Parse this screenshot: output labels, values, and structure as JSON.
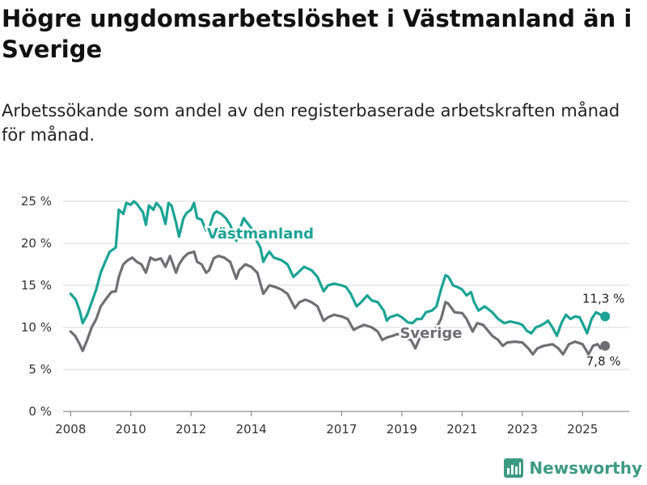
{
  "title": "Högre ungdomsarbetslöshet i Västmanland än i Sverige",
  "subtitle": "Arbetssökande som andel av den registerbaserade arbetskraften månad för månad.",
  "brand": "Newsworthy",
  "colors": {
    "vastmanland": "#1aa394",
    "sverige": "#6e6e73",
    "grid": "#d9d9d9",
    "axis": "#777777"
  },
  "chart_data": {
    "type": "line",
    "title": "Högre ungdomsarbetslöshet i Västmanland än i Sverige",
    "ylabel": "",
    "xlabel": "",
    "ylim": [
      0,
      25
    ],
    "xlim": [
      2007.75,
      2026.55
    ],
    "y_ticks": [
      0,
      5,
      10,
      15,
      20,
      25
    ],
    "y_tick_labels": [
      "0 %",
      "5 %",
      "10 %",
      "15 %",
      "20 %",
      "25 %"
    ],
    "x_ticks": [
      2008,
      2010,
      2012,
      2014,
      2017,
      2019,
      2021,
      2023,
      2025
    ],
    "x_tick_labels": [
      "2008",
      "2010",
      "2012",
      "2014",
      "2017",
      "2019",
      "2021",
      "2023",
      "2025"
    ],
    "series": [
      {
        "name": "Västmanland",
        "color": "#1aa394",
        "end_label": "11,3 %",
        "points": [
          [
            2008.0,
            14.0
          ],
          [
            2008.17,
            13.3
          ],
          [
            2008.3,
            12.0
          ],
          [
            2008.4,
            10.5
          ],
          [
            2008.55,
            11.5
          ],
          [
            2008.7,
            13.0
          ],
          [
            2008.85,
            14.5
          ],
          [
            2009.0,
            16.5
          ],
          [
            2009.15,
            17.8
          ],
          [
            2009.3,
            19.0
          ],
          [
            2009.5,
            19.5
          ],
          [
            2009.6,
            24.0
          ],
          [
            2009.75,
            23.5
          ],
          [
            2009.85,
            24.8
          ],
          [
            2010.0,
            24.6
          ],
          [
            2010.1,
            25.0
          ],
          [
            2010.2,
            24.7
          ],
          [
            2010.3,
            24.2
          ],
          [
            2010.4,
            23.7
          ],
          [
            2010.5,
            22.2
          ],
          [
            2010.6,
            24.5
          ],
          [
            2010.75,
            24.0
          ],
          [
            2010.85,
            24.8
          ],
          [
            2011.0,
            24.2
          ],
          [
            2011.15,
            22.3
          ],
          [
            2011.25,
            24.8
          ],
          [
            2011.35,
            24.5
          ],
          [
            2011.5,
            22.5
          ],
          [
            2011.6,
            20.8
          ],
          [
            2011.75,
            23.0
          ],
          [
            2011.85,
            23.6
          ],
          [
            2012.0,
            24.0
          ],
          [
            2012.1,
            24.8
          ],
          [
            2012.2,
            23.0
          ],
          [
            2012.35,
            22.8
          ],
          [
            2012.5,
            21.5
          ],
          [
            2012.6,
            21.8
          ],
          [
            2012.75,
            23.5
          ],
          [
            2012.85,
            23.8
          ],
          [
            2013.0,
            23.5
          ],
          [
            2013.15,
            23.0
          ],
          [
            2013.3,
            22.2
          ],
          [
            2013.5,
            20.3
          ],
          [
            2013.6,
            21.5
          ],
          [
            2013.75,
            23.0
          ],
          [
            2013.85,
            22.5
          ],
          [
            2014.0,
            21.8
          ],
          [
            2014.15,
            20.5
          ],
          [
            2014.3,
            19.5
          ],
          [
            2014.4,
            17.8
          ],
          [
            2014.5,
            18.5
          ],
          [
            2014.6,
            19.0
          ],
          [
            2014.75,
            18.3
          ],
          [
            2015.0,
            18.0
          ],
          [
            2015.2,
            17.5
          ],
          [
            2015.4,
            16.0
          ],
          [
            2015.55,
            16.5
          ],
          [
            2015.75,
            17.2
          ],
          [
            2016.0,
            16.8
          ],
          [
            2016.2,
            16.0
          ],
          [
            2016.4,
            14.3
          ],
          [
            2016.55,
            15.0
          ],
          [
            2016.75,
            15.2
          ],
          [
            2017.0,
            15.0
          ],
          [
            2017.15,
            14.8
          ],
          [
            2017.3,
            14.0
          ],
          [
            2017.5,
            12.5
          ],
          [
            2017.65,
            13.0
          ],
          [
            2017.85,
            13.8
          ],
          [
            2018.0,
            13.2
          ],
          [
            2018.2,
            13.0
          ],
          [
            2018.4,
            12.0
          ],
          [
            2018.5,
            10.8
          ],
          [
            2018.6,
            11.2
          ],
          [
            2018.85,
            11.5
          ],
          [
            2019.0,
            11.2
          ],
          [
            2019.2,
            10.6
          ],
          [
            2019.35,
            10.5
          ],
          [
            2019.5,
            11.0
          ],
          [
            2019.65,
            11.0
          ],
          [
            2019.8,
            11.8
          ],
          [
            2020.0,
            12.0
          ],
          [
            2020.15,
            12.5
          ],
          [
            2020.3,
            14.5
          ],
          [
            2020.45,
            16.2
          ],
          [
            2020.55,
            16.0
          ],
          [
            2020.7,
            15.0
          ],
          [
            2020.85,
            14.8
          ],
          [
            2021.0,
            14.5
          ],
          [
            2021.15,
            13.8
          ],
          [
            2021.3,
            14.2
          ],
          [
            2021.4,
            13.0
          ],
          [
            2021.55,
            12.0
          ],
          [
            2021.75,
            12.5
          ],
          [
            2022.0,
            11.8
          ],
          [
            2022.2,
            11.0
          ],
          [
            2022.4,
            10.5
          ],
          [
            2022.6,
            10.7
          ],
          [
            2022.85,
            10.5
          ],
          [
            2023.0,
            10.3
          ],
          [
            2023.15,
            9.6
          ],
          [
            2023.3,
            9.3
          ],
          [
            2023.45,
            10.0
          ],
          [
            2023.6,
            10.2
          ],
          [
            2023.75,
            10.5
          ],
          [
            2023.85,
            10.8
          ],
          [
            2024.0,
            10.0
          ],
          [
            2024.15,
            9.0
          ],
          [
            2024.3,
            10.5
          ],
          [
            2024.45,
            11.5
          ],
          [
            2024.6,
            11.0
          ],
          [
            2024.75,
            11.3
          ],
          [
            2024.9,
            11.2
          ],
          [
            2025.0,
            10.5
          ],
          [
            2025.15,
            9.3
          ],
          [
            2025.3,
            11.0
          ],
          [
            2025.45,
            11.8
          ],
          [
            2025.6,
            11.5
          ],
          [
            2025.75,
            11.3
          ]
        ]
      },
      {
        "name": "Sverige",
        "color": "#6e6e73",
        "end_label": "7,8 %",
        "points": [
          [
            2008.0,
            9.5
          ],
          [
            2008.15,
            9.0
          ],
          [
            2008.3,
            8.0
          ],
          [
            2008.4,
            7.2
          ],
          [
            2008.55,
            8.5
          ],
          [
            2008.7,
            10.0
          ],
          [
            2008.85,
            11.0
          ],
          [
            2009.0,
            12.5
          ],
          [
            2009.2,
            13.5
          ],
          [
            2009.35,
            14.2
          ],
          [
            2009.5,
            14.3
          ],
          [
            2009.6,
            16.0
          ],
          [
            2009.75,
            17.5
          ],
          [
            2009.9,
            18.0
          ],
          [
            2010.05,
            18.3
          ],
          [
            2010.2,
            17.8
          ],
          [
            2010.35,
            17.5
          ],
          [
            2010.5,
            16.5
          ],
          [
            2010.65,
            18.3
          ],
          [
            2010.8,
            18.0
          ],
          [
            2011.0,
            18.2
          ],
          [
            2011.15,
            17.2
          ],
          [
            2011.3,
            18.5
          ],
          [
            2011.5,
            16.5
          ],
          [
            2011.6,
            17.5
          ],
          [
            2011.75,
            18.3
          ],
          [
            2011.9,
            18.8
          ],
          [
            2012.1,
            19.0
          ],
          [
            2012.2,
            17.8
          ],
          [
            2012.35,
            17.5
          ],
          [
            2012.5,
            16.5
          ],
          [
            2012.6,
            16.8
          ],
          [
            2012.75,
            18.2
          ],
          [
            2012.9,
            18.5
          ],
          [
            2013.1,
            18.3
          ],
          [
            2013.3,
            17.8
          ],
          [
            2013.5,
            15.8
          ],
          [
            2013.6,
            16.8
          ],
          [
            2013.8,
            17.5
          ],
          [
            2014.0,
            17.2
          ],
          [
            2014.2,
            16.5
          ],
          [
            2014.4,
            14.0
          ],
          [
            2014.5,
            14.5
          ],
          [
            2014.6,
            15.0
          ],
          [
            2014.8,
            14.8
          ],
          [
            2015.0,
            14.5
          ],
          [
            2015.2,
            14.0
          ],
          [
            2015.45,
            12.3
          ],
          [
            2015.6,
            13.0
          ],
          [
            2015.8,
            13.3
          ],
          [
            2016.0,
            13.0
          ],
          [
            2016.2,
            12.5
          ],
          [
            2016.4,
            10.8
          ],
          [
            2016.55,
            11.2
          ],
          [
            2016.75,
            11.5
          ],
          [
            2017.0,
            11.3
          ],
          [
            2017.2,
            11.0
          ],
          [
            2017.4,
            9.7
          ],
          [
            2017.55,
            10.0
          ],
          [
            2017.75,
            10.3
          ],
          [
            2018.0,
            10.0
          ],
          [
            2018.2,
            9.5
          ],
          [
            2018.35,
            8.5
          ],
          [
            2018.5,
            8.8
          ],
          [
            2018.7,
            9.0
          ],
          [
            2018.85,
            9.2
          ],
          [
            2019.0,
            9.0
          ],
          [
            2019.15,
            8.7
          ],
          [
            2019.3,
            8.5
          ],
          [
            2019.45,
            7.5
          ],
          [
            2019.6,
            8.8
          ],
          [
            2019.8,
            9.3
          ],
          [
            2020.0,
            9.5
          ],
          [
            2020.15,
            10.0
          ],
          [
            2020.3,
            11.0
          ],
          [
            2020.45,
            13.0
          ],
          [
            2020.55,
            12.8
          ],
          [
            2020.75,
            11.8
          ],
          [
            2021.0,
            11.7
          ],
          [
            2021.15,
            11.0
          ],
          [
            2021.35,
            9.5
          ],
          [
            2021.5,
            10.5
          ],
          [
            2021.7,
            10.3
          ],
          [
            2022.0,
            9.0
          ],
          [
            2022.2,
            8.5
          ],
          [
            2022.35,
            7.8
          ],
          [
            2022.5,
            8.2
          ],
          [
            2022.75,
            8.3
          ],
          [
            2023.0,
            8.2
          ],
          [
            2023.2,
            7.5
          ],
          [
            2023.35,
            6.8
          ],
          [
            2023.5,
            7.5
          ],
          [
            2023.7,
            7.8
          ],
          [
            2024.0,
            8.0
          ],
          [
            2024.2,
            7.5
          ],
          [
            2024.35,
            6.8
          ],
          [
            2024.55,
            8.0
          ],
          [
            2024.75,
            8.3
          ],
          [
            2025.0,
            8.0
          ],
          [
            2025.2,
            6.8
          ],
          [
            2025.35,
            7.8
          ],
          [
            2025.5,
            8.0
          ],
          [
            2025.6,
            7.5
          ],
          [
            2025.75,
            7.8
          ]
        ]
      }
    ]
  }
}
